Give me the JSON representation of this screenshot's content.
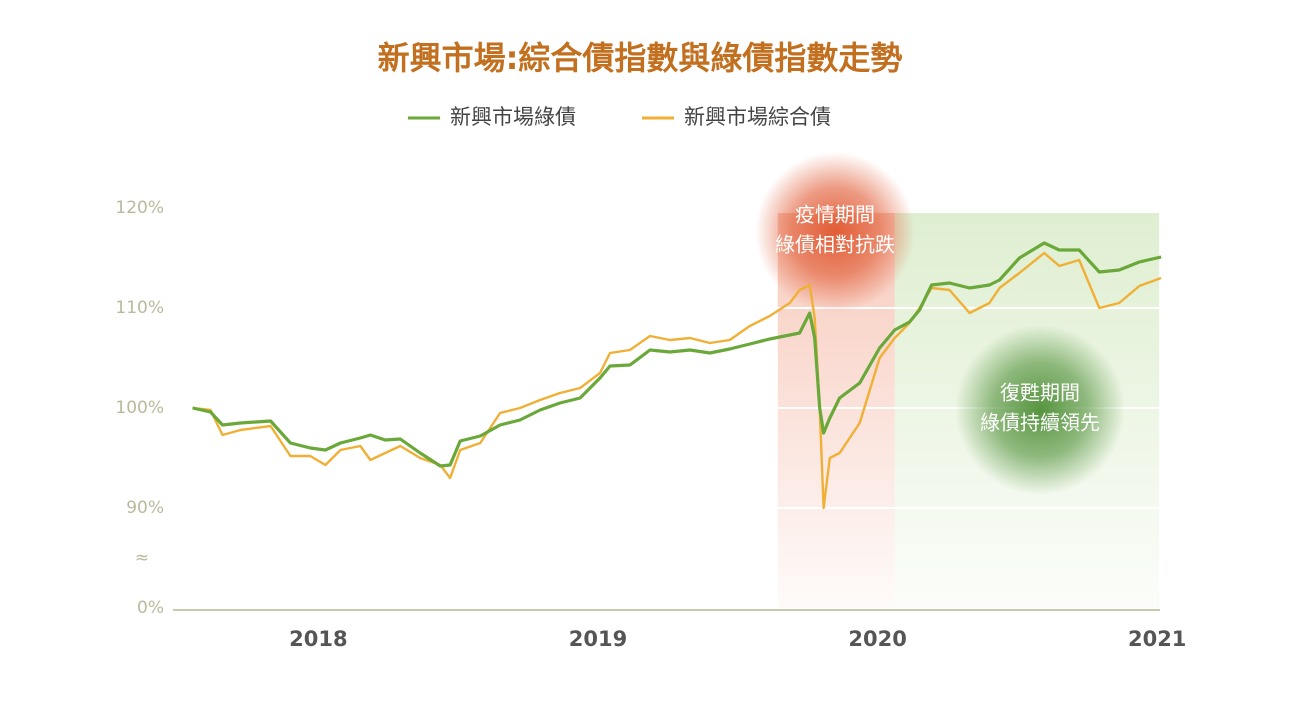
{
  "chart_data": {
    "type": "line",
    "title": "新興市場:綜合債指數與綠債指數走勢",
    "x": [
      2017.55,
      2017.614,
      2017.657,
      2017.721,
      2017.829,
      2017.9,
      2017.971,
      2018.025,
      2018.079,
      2018.15,
      2018.186,
      2018.239,
      2018.293,
      2018.364,
      2018.436,
      2018.471,
      2018.507,
      2018.579,
      2018.65,
      2018.721,
      2018.793,
      2018.864,
      2018.936,
      2019.007,
      2019.043,
      2019.114,
      2019.186,
      2019.257,
      2019.329,
      2019.4,
      2019.471,
      2019.543,
      2019.614,
      2019.686,
      2019.721,
      2019.757,
      2019.775,
      2019.793,
      2019.807,
      2019.829,
      2019.864,
      2019.936,
      2020.007,
      2020.061,
      2020.114,
      2020.15,
      2020.193,
      2020.257,
      2020.329,
      2020.4,
      2020.436,
      2020.507,
      2020.596,
      2020.65,
      2020.721,
      2020.793,
      2020.864,
      2020.936,
      2021.014
    ],
    "series": [
      {
        "name": "新興市場綠債",
        "color": "#6aa83a",
        "values": [
          100,
          99.6,
          98.3,
          98.5,
          98.7,
          96.5,
          96,
          95.8,
          96.5,
          97,
          97.3,
          96.8,
          96.9,
          95.5,
          94.2,
          94.3,
          96.7,
          97.2,
          98.3,
          98.8,
          99.8,
          100.5,
          101,
          103,
          104.2,
          104.3,
          105.8,
          105.6,
          105.8,
          105.5,
          105.9,
          106.4,
          106.9,
          107.3,
          107.5,
          109.5,
          107,
          100,
          97.5,
          99,
          101,
          102.5,
          106,
          107.8,
          108.6,
          109.8,
          112.3,
          112.5,
          112,
          112.3,
          112.8,
          115,
          116.5,
          115.8,
          115.8,
          113.6,
          113.8,
          114.6,
          115.1
        ]
      },
      {
        "name": "新興市場綜合債",
        "color": "#f0b036",
        "values": [
          100,
          99.8,
          97.3,
          97.8,
          98.2,
          95.2,
          95.2,
          94.3,
          95.8,
          96.2,
          94.8,
          95.5,
          96.2,
          95,
          94.3,
          93,
          95.8,
          96.5,
          99.5,
          100,
          100.8,
          101.5,
          102,
          103.5,
          105.5,
          105.8,
          107.2,
          106.8,
          107,
          106.5,
          106.8,
          108.2,
          109.2,
          110.5,
          111.8,
          112.3,
          109,
          100,
          90,
          95,
          95.5,
          98.5,
          105,
          107,
          108.5,
          110,
          112,
          111.8,
          109.5,
          110.5,
          112,
          113.5,
          115.5,
          114.2,
          114.8,
          110,
          110.5,
          112.2,
          113
        ]
      }
    ],
    "xlim": [
      2017.48,
      2021.01
    ],
    "xticks": [
      2018,
      2019,
      2020,
      2021
    ],
    "ylim": [
      0,
      120
    ],
    "y_break": [
      0,
      80
    ],
    "axis_break_symbol": "≈",
    "yticks": [
      {
        "value": 0,
        "label": "0%"
      },
      {
        "value": 90,
        "label": "90%"
      },
      {
        "value": 100,
        "label": "100%"
      },
      {
        "value": 110,
        "label": "110%"
      },
      {
        "value": 120,
        "label": "120%"
      }
    ],
    "grid": true,
    "grid_color": "#ffffff",
    "shaded_periods": [
      {
        "start": 2019.643,
        "end": 2020.061,
        "color": "#e8673f",
        "label": [
          "疫情期間",
          "綠債相對抗跌"
        ]
      },
      {
        "start": 2020.061,
        "end": 2021.007,
        "color": "#8cc45a",
        "label": [
          "復甦期間",
          "綠債持續領先"
        ]
      }
    ]
  }
}
